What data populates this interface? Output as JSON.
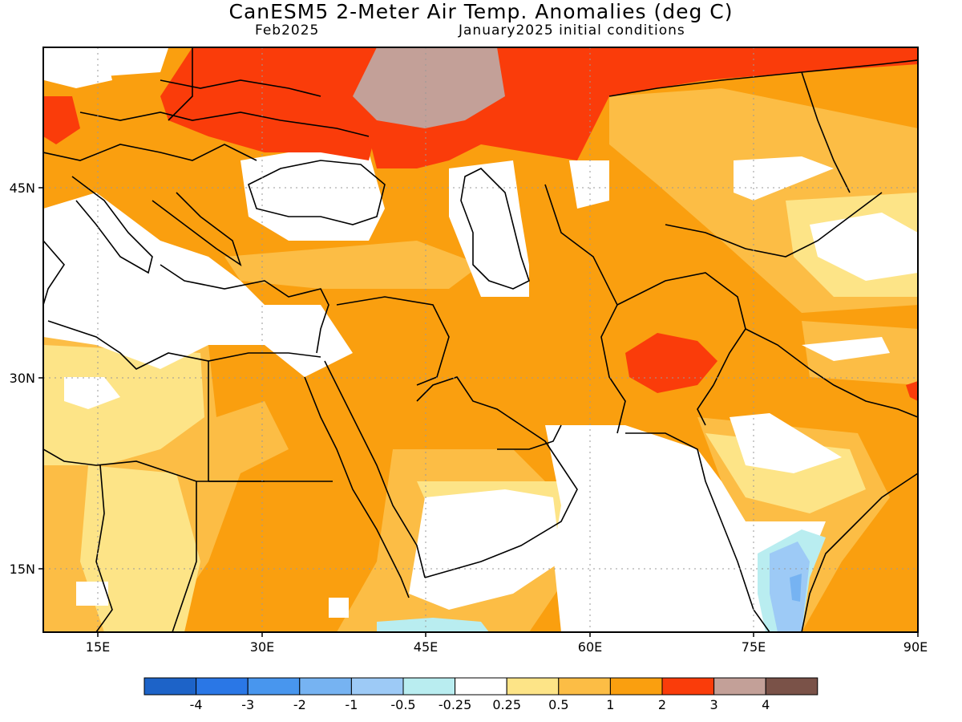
{
  "title": "CanESM5 2-Meter Air Temp. Anomalies (deg C)",
  "valid_month": "Feb2025",
  "initial_conditions": "January2025 initial conditions",
  "lat_labels": [
    "45N",
    "30N",
    "15N"
  ],
  "lon_labels": [
    "15E",
    "30E",
    "45E",
    "60E",
    "75E",
    "90E"
  ],
  "colorbar": {
    "colors": [
      "#1d63c8",
      "#2a77e6",
      "#4896ee",
      "#76b3f2",
      "#9dcaf6",
      "#b9edf0",
      "#ffffff",
      "#fde487",
      "#fcbd45",
      "#fa9f0f",
      "#fa3c0a",
      "#c3a098",
      "#7a5248"
    ],
    "labels": [
      "-4",
      "-3",
      "-2",
      "-1",
      "-0.5",
      "-0.25",
      "0.25",
      "0.5",
      "1",
      "2",
      "3",
      "4"
    ]
  },
  "map_extent": {
    "lon": [
      10,
      90
    ],
    "lat": [
      10,
      56
    ]
  }
}
